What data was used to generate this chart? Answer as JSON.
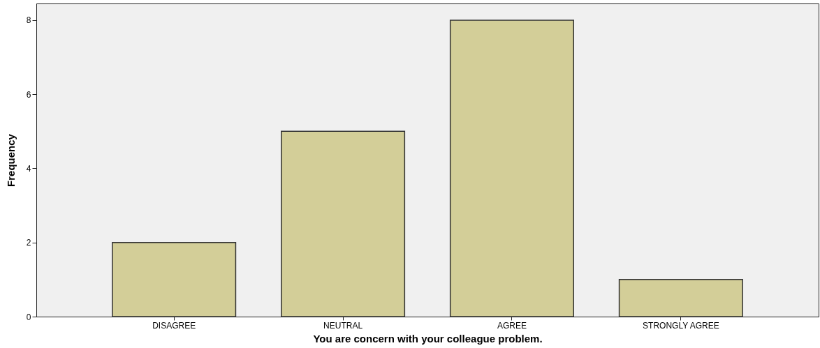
{
  "chart_data": {
    "type": "bar",
    "xlabel": "You are concern with your colleague problem.",
    "ylabel": "Frequency",
    "categories": [
      "DISAGREE",
      "NEUTRAL",
      "AGREE",
      "STRONGLY AGREE"
    ],
    "values": [
      2,
      5,
      8,
      1
    ],
    "color": "#d3ce98",
    "ylim": [
      0,
      8.45
    ],
    "yticks": [
      0,
      2,
      4,
      6,
      8
    ],
    "grid": false
  }
}
